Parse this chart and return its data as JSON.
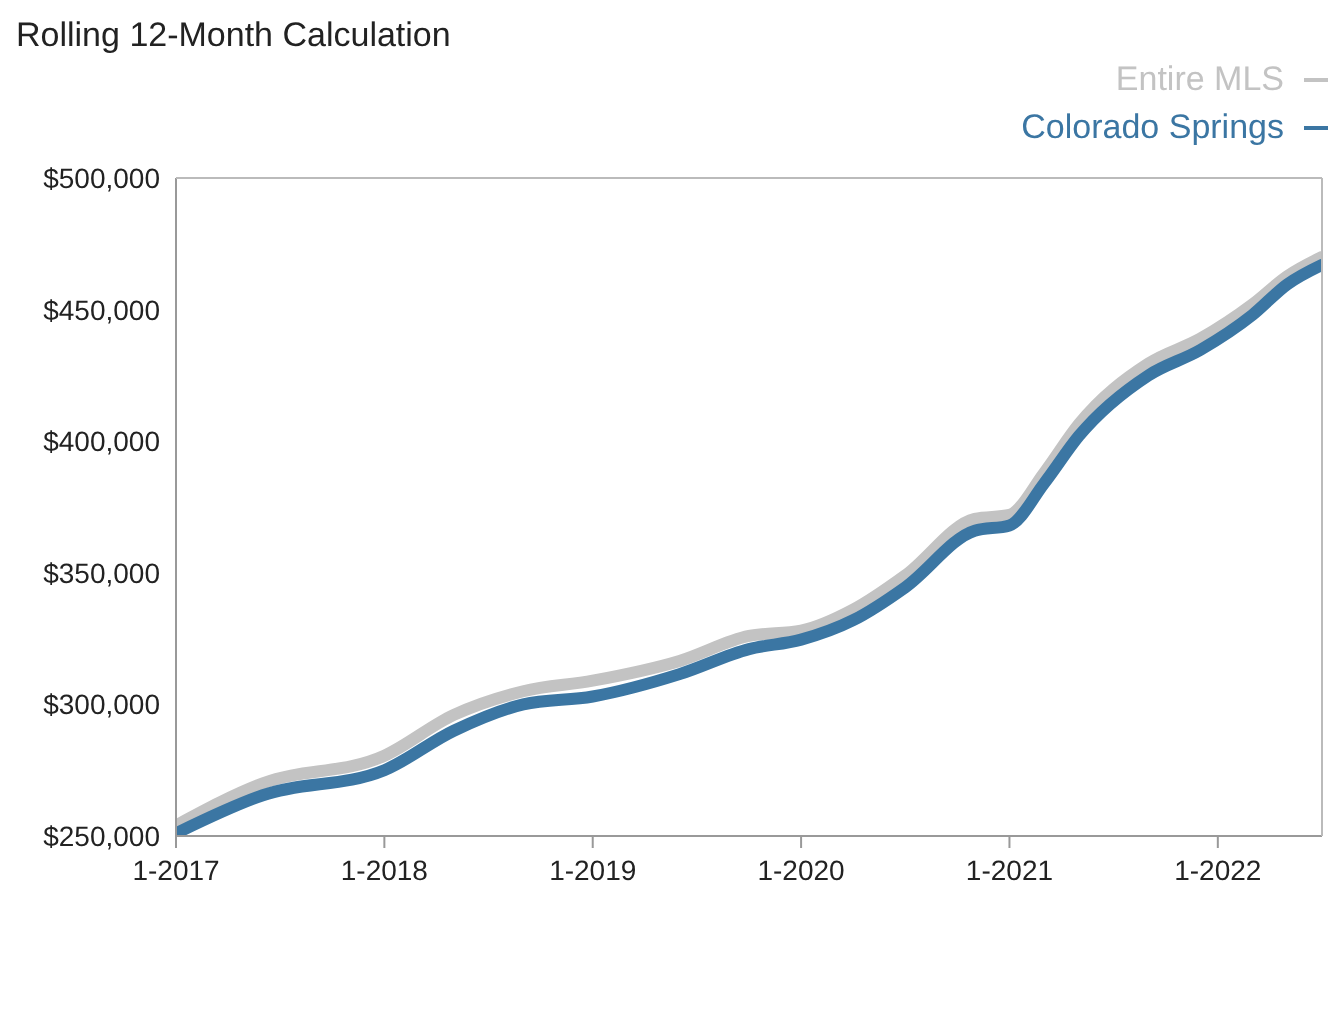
{
  "chart_data": {
    "type": "line",
    "title": "Rolling 12-Month Calculation",
    "x": [
      "2017-01",
      "2017-06",
      "2018-01",
      "2018-05",
      "2018-09",
      "2019-01",
      "2019-06",
      "2019-10",
      "2020-01",
      "2020-04",
      "2020-07",
      "2020-11",
      "2021-01",
      "2021-03",
      "2021-05",
      "2021-09",
      "2021-12",
      "2022-03",
      "2022-05",
      "2022-07"
    ],
    "series": [
      {
        "name": "Entire MLS",
        "color": "#c3c3c3",
        "values": [
          254000,
          270000,
          280500,
          296000,
          305000,
          309000,
          316500,
          326000,
          328000,
          336000,
          349000,
          370500,
          372000,
          388000,
          406500,
          429500,
          439000,
          452000,
          462700,
          470000
        ]
      },
      {
        "name": "Colorado Springs",
        "color": "#3b76a3",
        "values": [
          251000,
          265500,
          275000,
          290000,
          300000,
          303000,
          311500,
          321000,
          324600,
          332000,
          344500,
          366000,
          368000,
          384000,
          402000,
          425000,
          434700,
          448000,
          459600,
          467000
        ]
      }
    ],
    "xlim": [
      "2017-01",
      "2022-07"
    ],
    "xticks": [
      {
        "value": "2017-01",
        "label": "1-2017"
      },
      {
        "value": "2018-01",
        "label": "1-2018"
      },
      {
        "value": "2019-01",
        "label": "1-2019"
      },
      {
        "value": "2020-01",
        "label": "1-2020"
      },
      {
        "value": "2021-01",
        "label": "1-2021"
      },
      {
        "value": "2022-01",
        "label": "1-2022"
      }
    ],
    "ylim": [
      250000,
      500000
    ],
    "yticks": [
      {
        "value": 250000,
        "label": "$250,000"
      },
      {
        "value": 300000,
        "label": "$300,000"
      },
      {
        "value": 350000,
        "label": "$350,000"
      },
      {
        "value": 400000,
        "label": "$400,000"
      },
      {
        "value": 450000,
        "label": "$450,000"
      },
      {
        "value": 500000,
        "label": "$500,000"
      }
    ],
    "legend": "top right",
    "grid": false,
    "marker": "none",
    "line_style": "solid"
  }
}
